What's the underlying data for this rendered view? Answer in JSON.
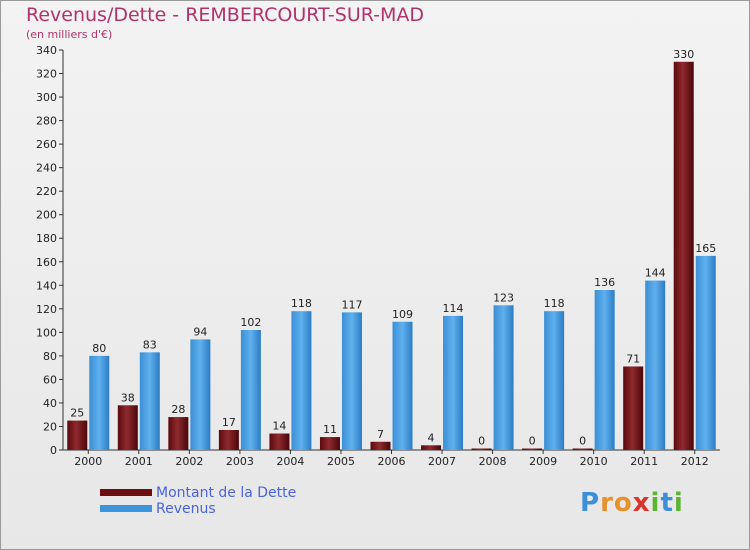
{
  "header": {
    "title": "Revenus/Dette - REMBERCOURT-SUR-MAD",
    "subtitle": "(en milliers d'€)"
  },
  "legend": {
    "items": [
      {
        "label": "Montant de la Dette",
        "color": "#6b0d12"
      },
      {
        "label": "Revenus",
        "color": "#3c95dc"
      }
    ]
  },
  "logo": {
    "letters": [
      {
        "ch": "P",
        "color": "#3d8fd8"
      },
      {
        "ch": "r",
        "color": "#e8912a"
      },
      {
        "ch": "o",
        "color": "#e8912a"
      },
      {
        "ch": "x",
        "color": "#d9342b"
      },
      {
        "ch": "i",
        "color": "#5bb533"
      },
      {
        "ch": "t",
        "color": "#3d8fd8"
      },
      {
        "ch": "i",
        "color": "#5bb533"
      }
    ]
  },
  "chart_data": {
    "type": "bar",
    "title": "Revenus/Dette - REMBERCOURT-SUR-MAD",
    "ylabel": "(en milliers d'€)",
    "xlabel": "",
    "categories": [
      "2000",
      "2001",
      "2002",
      "2003",
      "2004",
      "2005",
      "2006",
      "2007",
      "2008",
      "2009",
      "2010",
      "2011",
      "2012"
    ],
    "series": [
      {
        "name": "Montant de la Dette",
        "color": "#6b0d12",
        "values": [
          25,
          38,
          28,
          17,
          14,
          11,
          7,
          4,
          0,
          0,
          0,
          71,
          330
        ]
      },
      {
        "name": "Revenus",
        "color": "#3c95dc",
        "values": [
          80,
          83,
          94,
          102,
          118,
          117,
          109,
          114,
          123,
          118,
          136,
          144,
          165
        ]
      }
    ],
    "ylim": [
      0,
      340
    ],
    "yticks": [
      0,
      20,
      40,
      60,
      80,
      100,
      120,
      140,
      160,
      180,
      200,
      220,
      240,
      260,
      280,
      300,
      320,
      340
    ],
    "grid": false,
    "legend_position": "bottom-left"
  }
}
